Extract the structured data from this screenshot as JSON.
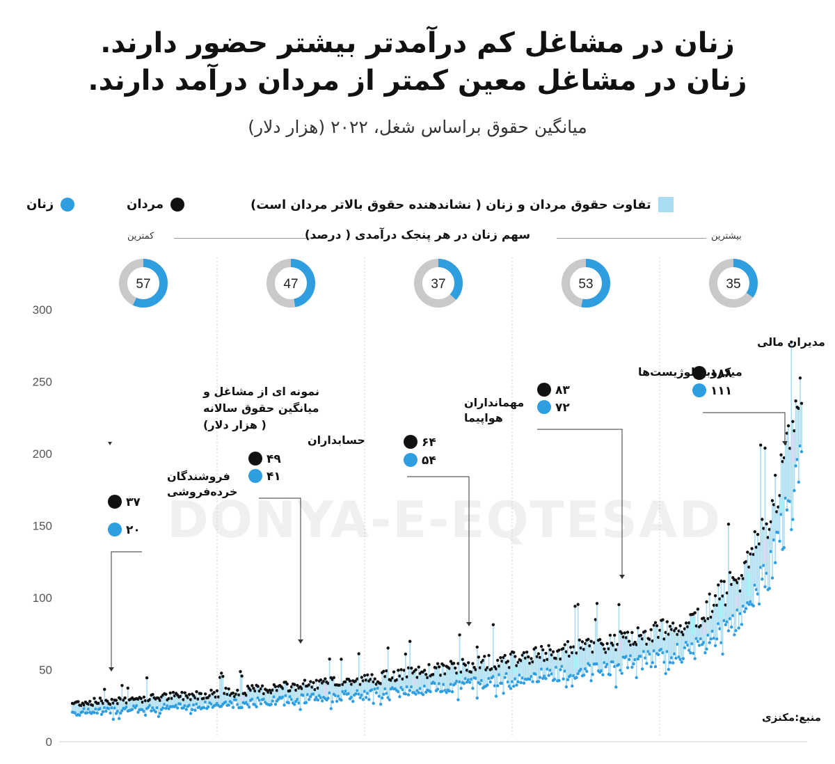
{
  "header": {
    "title_line1": "زنان در مشاغل کم درآمدتر بیشتر حضور دارند.",
    "title_line2": "زنان در مشاغل معین کمتر از مردان درآمد دارند.",
    "subtitle": "میانگین حقوق براساس شغل، ۲۰۲۲ (هزار دلار)"
  },
  "legend": {
    "women": "زنان",
    "men": "مردان",
    "gap": "تفاوت حقوق مردان و زنان ( نشاندهنده حقوق بالاتر مردان است)"
  },
  "quintiles": {
    "label": "سهم زنان در هر پنجک درآمدی ( درصد)",
    "lowest": "کمترین",
    "highest": "بیشترین",
    "values": [
      57,
      47,
      37,
      53,
      35
    ]
  },
  "sample_note": {
    "text_line1": "نمونه ای از مشاغل و",
    "text_line2": "میانگین حقوق سالانه",
    "text_line3": "( هزار دلار)"
  },
  "annotations": [
    {
      "name_line1": "فروشندگان",
      "name_line2": "خرده‌فروشی",
      "men": "۳۷",
      "women": "۲۰"
    },
    {
      "name_line1": "حسابداران",
      "name_line2": "",
      "men": "۴۹",
      "women": "۴۱"
    },
    {
      "name_line1": "مهمانداران",
      "name_line2": "هواپیما",
      "men": "۶۴",
      "women": "۵۴"
    },
    {
      "name_line1": "میکروبیولوژیست‌ها",
      "name_line2": "",
      "men": "۸۳",
      "women": "۷۲"
    },
    {
      "name_line1": "مدیران مالی",
      "name_line2": "",
      "men": "۱۸۸",
      "women": "۱۱۱"
    }
  ],
  "source": "منبع:مکنزی",
  "watermark": "DONYA-E-EQTESAD",
  "colors": {
    "women": "#2f9ee0",
    "men": "#111111",
    "gap": "#a8dcf2",
    "donut_bg": "#c9c9c9"
  },
  "chart_data": {
    "type": "scatter",
    "ylim": [
      0,
      300
    ],
    "yticks": [
      0,
      50,
      100,
      150,
      200,
      250,
      300
    ],
    "grid": false,
    "x": "occupations sorted by average salary (ascending)",
    "series": [
      {
        "name": "مردان",
        "sample_values": [
          37,
          49,
          64,
          83,
          188
        ]
      },
      {
        "name": "زنان",
        "sample_values": [
          20,
          41,
          54,
          72,
          111
        ]
      }
    ],
    "curve": {
      "n_occupations": 500,
      "start": 23,
      "end": 215,
      "anchors": [
        [
          0,
          23
        ],
        [
          20,
          29
        ],
        [
          40,
          37
        ],
        [
          60,
          49
        ],
        [
          75,
          60
        ],
        [
          85,
          72
        ],
        [
          92,
          100
        ],
        [
          96,
          140
        ],
        [
          100,
          215
        ]
      ]
    }
  }
}
